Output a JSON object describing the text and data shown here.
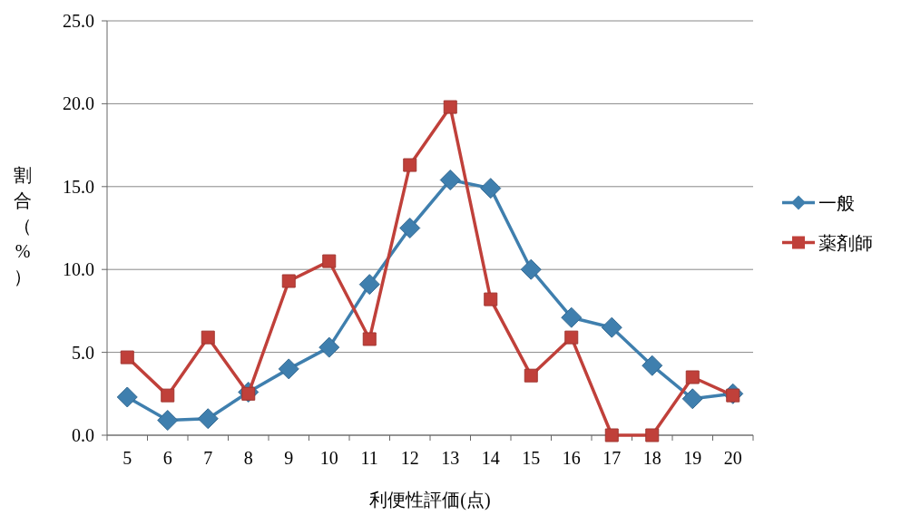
{
  "chart_data": {
    "type": "line",
    "xlabel": "利便性評価(点)",
    "ylabel": "割合（%）",
    "categories": [
      "5",
      "6",
      "7",
      "8",
      "9",
      "10",
      "11",
      "12",
      "13",
      "14",
      "15",
      "16",
      "17",
      "18",
      "19",
      "20"
    ],
    "series": [
      {
        "name": "一般",
        "color": "#3f7fae",
        "marker": "diamond",
        "values": [
          2.3,
          0.9,
          1.0,
          2.6,
          4.0,
          5.3,
          9.1,
          12.5,
          15.4,
          14.9,
          10.0,
          7.1,
          6.5,
          4.2,
          2.2,
          2.5
        ]
      },
      {
        "name": "薬剤師",
        "color": "#c0403a",
        "marker": "square",
        "values": [
          4.7,
          2.4,
          5.9,
          2.5,
          9.3,
          10.5,
          5.8,
          16.3,
          19.8,
          8.2,
          3.6,
          5.9,
          0,
          0,
          3.5,
          2.4
        ]
      }
    ],
    "ylim": [
      0,
      25
    ],
    "yticks": [
      {
        "value": 0,
        "label": "0.0"
      },
      {
        "value": 5,
        "label": "5.0"
      },
      {
        "value": 10,
        "label": "10.0"
      },
      {
        "value": 15,
        "label": "15.0"
      },
      {
        "value": 20,
        "label": "20.0"
      },
      {
        "value": 25,
        "label": "25.0"
      }
    ],
    "grid": "y",
    "legend": "right"
  }
}
